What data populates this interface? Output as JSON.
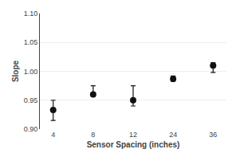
{
  "chart_data": {
    "type": "scatter",
    "categories": [
      "4",
      "8",
      "12",
      "24",
      "36"
    ],
    "values": [
      0.933,
      0.96,
      0.95,
      0.987,
      1.01
    ],
    "error_lower": [
      0.018,
      0.003,
      0.01,
      0.004,
      0.012
    ],
    "error_upper": [
      0.017,
      0.015,
      0.025,
      0.005,
      0.005
    ],
    "color": "#111111",
    "marker": "circle",
    "xlabel": "Sensor Spacing (inches)",
    "ylabel": "Slope",
    "ylim": [
      0.9,
      1.1
    ],
    "yticks": [
      {
        "value": 0.9,
        "label": "0.90"
      },
      0.95,
      {
        "value": 1.0,
        "label": "1.00"
      },
      1.05,
      {
        "value": 1.1,
        "label": "1.10"
      }
    ],
    "grid": true
  }
}
